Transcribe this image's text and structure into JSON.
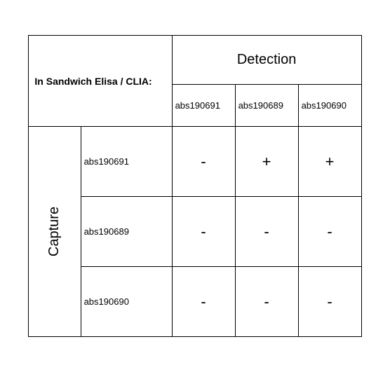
{
  "type": "table",
  "corner_label": "In Sandwich Elisa / CLIA:",
  "detection_label": "Detection",
  "capture_label": "Capture",
  "detection_ids": [
    "abs190691",
    "abs190689",
    "abs190690"
  ],
  "capture_ids": [
    "abs190691",
    "abs190689",
    "abs190690"
  ],
  "matrix": [
    [
      "-",
      "+",
      "+"
    ],
    [
      "-",
      "-",
      "-"
    ],
    [
      "-",
      "-",
      "-"
    ]
  ],
  "border_color": "#000000",
  "background_color": "#ffffff",
  "text_color": "#000000",
  "header_fontsize": 20,
  "id_fontsize": 13,
  "cell_fontsize": 22,
  "corner_fontsize": 14
}
